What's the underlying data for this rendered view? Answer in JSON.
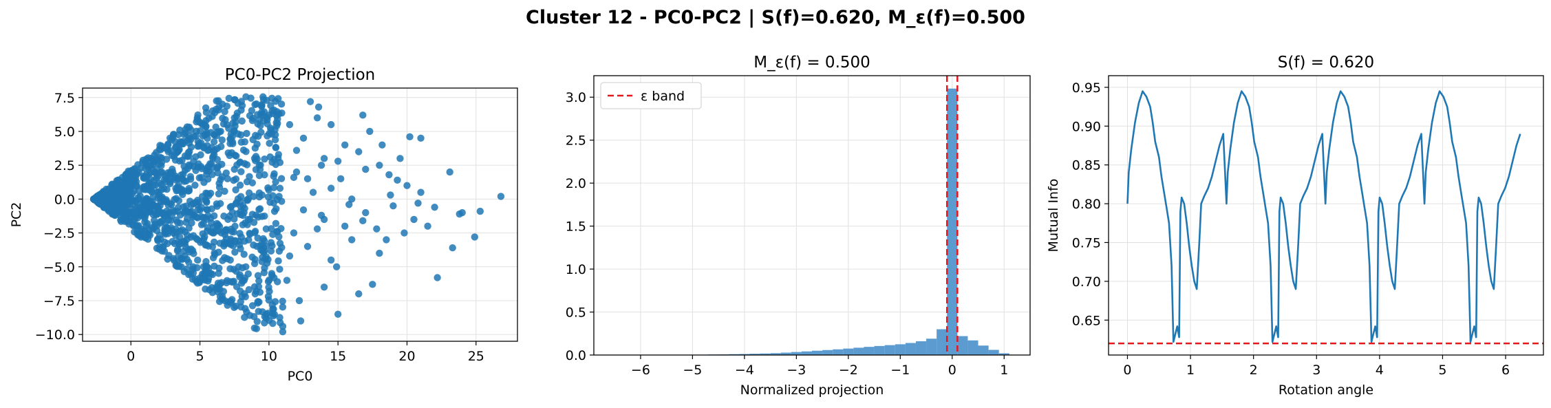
{
  "figure": {
    "suptitle": "Cluster 12 - PC0-PC2 | S(f)=0.620, M_ε(f)=0.500"
  },
  "colors": {
    "blue": "#1f77b4",
    "hist": "#5b9bd0",
    "red": "#e8151b",
    "grid": "#e0e0e0"
  },
  "chart_data": [
    {
      "type": "scatter",
      "title": "PC0-PC2 Projection",
      "xlabel": "PC0",
      "ylabel": "PC2",
      "xlim": [
        -3.5,
        28
      ],
      "ylim": [
        -10.5,
        8.2
      ],
      "xticks": [
        0,
        5,
        10,
        15,
        20,
        25
      ],
      "yticks": [
        -10.0,
        -7.5,
        -5.0,
        -2.5,
        0.0,
        2.5,
        5.0,
        7.5
      ],
      "grid": true,
      "point_cloud": {
        "description_of_shape": "dense wedge from origin",
        "apex": [
          -2.7,
          0.0
        ],
        "dense_until_x": 5,
        "slope": 0.83
      },
      "points": [
        [
          26.8,
          0.2
        ],
        [
          25.3,
          -0.9
        ],
        [
          24.0,
          -1.0
        ],
        [
          23.8,
          -1.1
        ],
        [
          24.9,
          -2.8
        ],
        [
          23.1,
          2.0
        ],
        [
          23.3,
          -3.6
        ],
        [
          22.0,
          -0.6
        ],
        [
          22.2,
          -5.8
        ],
        [
          21.0,
          4.5
        ],
        [
          21.0,
          0.5
        ],
        [
          20.5,
          -1.5
        ],
        [
          20.0,
          1.0
        ],
        [
          19.8,
          -2.5
        ],
        [
          20.2,
          4.6
        ],
        [
          19.5,
          3.0
        ],
        [
          19.0,
          -0.5
        ],
        [
          18.7,
          1.8
        ],
        [
          18.5,
          -3.0
        ],
        [
          18.0,
          -4.0
        ],
        [
          18.0,
          2.5
        ],
        [
          17.5,
          -6.3
        ],
        [
          17.0,
          -1.0
        ],
        [
          17.3,
          5.0
        ],
        [
          16.8,
          6.2
        ],
        [
          16.5,
          3.5
        ],
        [
          16.5,
          -7.0
        ],
        [
          16.0,
          0.0
        ],
        [
          15.5,
          4.0
        ],
        [
          15.0,
          -8.5
        ],
        [
          15.5,
          -2.0
        ],
        [
          15.2,
          1.5
        ],
        [
          14.9,
          -5.0
        ],
        [
          14.5,
          5.5
        ],
        [
          14.5,
          -4.5
        ],
        [
          14.0,
          -6.5
        ],
        [
          14.0,
          3.0
        ],
        [
          13.8,
          -1.2
        ],
        [
          13.5,
          6.0
        ],
        [
          13.0,
          7.2
        ],
        [
          13.6,
          6.8
        ],
        [
          13.2,
          0.5
        ],
        [
          12.8,
          -3.5
        ],
        [
          12.5,
          4.5
        ],
        [
          12.3,
          -9.0
        ],
        [
          12.2,
          -7.5
        ],
        [
          12.0,
          2.0
        ],
        [
          11.8,
          -2.5
        ],
        [
          11.5,
          5.5
        ],
        [
          11.3,
          -6.0
        ],
        [
          11.0,
          -9.4
        ],
        [
          11.0,
          -9.8
        ],
        [
          10.8,
          0.8
        ],
        [
          10.5,
          3.8
        ],
        [
          10.2,
          -5.5
        ],
        [
          10.0,
          6.2
        ],
        [
          9.8,
          -8.5
        ],
        [
          9.5,
          -3.8
        ],
        [
          9.3,
          2.5
        ],
        [
          9.0,
          -7.0
        ],
        [
          8.8,
          5.8
        ],
        [
          8.5,
          -1.5
        ],
        [
          8.2,
          -6.0
        ],
        [
          8.0,
          4.2
        ],
        [
          7.8,
          -5.0
        ],
        [
          7.5,
          6.0
        ],
        [
          7.2,
          -4.5
        ],
        [
          7.0,
          1.5
        ],
        [
          6.8,
          -7.5
        ],
        [
          6.5,
          5.0
        ],
        [
          6.2,
          -6.5
        ],
        [
          6.0,
          3.5
        ],
        [
          5.8,
          -5.5
        ],
        [
          5.5,
          4.8
        ],
        [
          11.5,
          -4.2
        ],
        [
          12.8,
          1.5
        ],
        [
          13.5,
          -2.2
        ],
        [
          10.5,
          -1.8
        ],
        [
          14.5,
          0.8
        ],
        [
          15.8,
          -0.4
        ],
        [
          17.0,
          2.2
        ],
        [
          16.0,
          -3.0
        ],
        [
          18.8,
          0.3
        ],
        [
          19.3,
          1.4
        ],
        [
          21.5,
          -2.0
        ],
        [
          20.8,
          -0.3
        ],
        [
          9.8,
          -2.2
        ],
        [
          8.8,
          1.2
        ],
        [
          10.8,
          2.7
        ],
        [
          11.8,
          1.6
        ],
        [
          12.5,
          -0.8
        ],
        [
          14.0,
          -1.5
        ],
        [
          13.8,
          2.5
        ],
        [
          15.0,
          2.8
        ],
        [
          9.5,
          0.3
        ],
        [
          8.0,
          -2.8
        ],
        [
          7.5,
          2.2
        ],
        [
          10.2,
          4.8
        ],
        [
          12.0,
          3.6
        ],
        [
          16.8,
          -1.6
        ],
        [
          18.2,
          4.0
        ],
        [
          17.8,
          -2.2
        ]
      ]
    },
    {
      "type": "bar",
      "title": "M_ε(f) = 0.500",
      "xlabel": "Normalized projection",
      "ylabel": "",
      "xlim": [
        -6.9,
        1.5
      ],
      "ylim": [
        0,
        3.25
      ],
      "xticks": [
        -6,
        -5,
        -4,
        -3,
        -2,
        -1,
        0,
        1
      ],
      "yticks": [
        0.0,
        0.5,
        1.0,
        1.5,
        2.0,
        2.5,
        3.0
      ],
      "grid": true,
      "bin_width": 0.2,
      "bins": [
        {
          "x": -6.6,
          "h": 0.0
        },
        {
          "x": -6.4,
          "h": 0.001
        },
        {
          "x": -6.2,
          "h": 0.001
        },
        {
          "x": -6.0,
          "h": 0.002
        },
        {
          "x": -5.8,
          "h": 0.002
        },
        {
          "x": -5.6,
          "h": 0.002
        },
        {
          "x": -5.4,
          "h": 0.003
        },
        {
          "x": -5.2,
          "h": 0.003
        },
        {
          "x": -5.0,
          "h": 0.004
        },
        {
          "x": -4.8,
          "h": 0.004
        },
        {
          "x": -4.6,
          "h": 0.006
        },
        {
          "x": -4.4,
          "h": 0.007
        },
        {
          "x": -4.2,
          "h": 0.01
        },
        {
          "x": -4.0,
          "h": 0.012
        },
        {
          "x": -3.8,
          "h": 0.015
        },
        {
          "x": -3.6,
          "h": 0.018
        },
        {
          "x": -3.4,
          "h": 0.022
        },
        {
          "x": -3.2,
          "h": 0.028
        },
        {
          "x": -3.0,
          "h": 0.035
        },
        {
          "x": -2.8,
          "h": 0.042
        },
        {
          "x": -2.6,
          "h": 0.05
        },
        {
          "x": -2.4,
          "h": 0.058
        },
        {
          "x": -2.2,
          "h": 0.066
        },
        {
          "x": -2.0,
          "h": 0.075
        },
        {
          "x": -1.8,
          "h": 0.085
        },
        {
          "x": -1.6,
          "h": 0.095
        },
        {
          "x": -1.4,
          "h": 0.105
        },
        {
          "x": -1.2,
          "h": 0.115
        },
        {
          "x": -1.0,
          "h": 0.125
        },
        {
          "x": -0.8,
          "h": 0.14
        },
        {
          "x": -0.6,
          "h": 0.16
        },
        {
          "x": -0.4,
          "h": 0.19
        },
        {
          "x": -0.2,
          "h": 0.3
        },
        {
          "x": 0.0,
          "h": 3.1
        },
        {
          "x": 0.2,
          "h": 0.22
        },
        {
          "x": 0.4,
          "h": 0.17
        },
        {
          "x": 0.6,
          "h": 0.11
        },
        {
          "x": 0.8,
          "h": 0.06
        },
        {
          "x": 1.0,
          "h": 0.02
        }
      ],
      "eps_band": [
        -0.1,
        0.1
      ],
      "legend": {
        "label": "ε band",
        "placement": "top-left"
      }
    },
    {
      "type": "line",
      "title": "S(f) = 0.620",
      "xlabel": "Rotation angle",
      "ylabel": "Mutual Info",
      "xlim": [
        -0.3,
        6.6
      ],
      "ylim": [
        0.605,
        0.965
      ],
      "xticks": [
        0,
        1,
        2,
        3,
        4,
        5,
        6
      ],
      "yticks": [
        0.65,
        0.7,
        0.75,
        0.8,
        0.85,
        0.9,
        0.95
      ],
      "grid": true,
      "threshold": 0.62,
      "period": 1.5708,
      "pattern": [
        [
          0.0,
          0.8
        ],
        [
          0.02,
          0.84
        ],
        [
          0.06,
          0.87
        ],
        [
          0.12,
          0.905
        ],
        [
          0.18,
          0.93
        ],
        [
          0.24,
          0.945
        ],
        [
          0.3,
          0.938
        ],
        [
          0.36,
          0.925
        ],
        [
          0.4,
          0.905
        ],
        [
          0.44,
          0.88
        ],
        [
          0.5,
          0.86
        ],
        [
          0.54,
          0.835
        ],
        [
          0.58,
          0.815
        ],
        [
          0.62,
          0.795
        ],
        [
          0.66,
          0.775
        ],
        [
          0.7,
          0.72
        ],
        [
          0.73,
          0.622
        ],
        [
          0.76,
          0.632
        ],
        [
          0.79,
          0.642
        ],
        [
          0.82,
          0.628
        ],
        [
          0.84,
          0.79
        ],
        [
          0.86,
          0.808
        ],
        [
          0.9,
          0.8
        ],
        [
          0.94,
          0.775
        ],
        [
          0.98,
          0.745
        ],
        [
          1.02,
          0.72
        ],
        [
          1.06,
          0.7
        ],
        [
          1.1,
          0.69
        ],
        [
          1.14,
          0.75
        ],
        [
          1.17,
          0.8
        ],
        [
          1.22,
          0.81
        ],
        [
          1.28,
          0.82
        ],
        [
          1.34,
          0.835
        ],
        [
          1.4,
          0.855
        ],
        [
          1.46,
          0.875
        ],
        [
          1.52,
          0.89
        ],
        [
          1.5708,
          0.8
        ]
      ]
    }
  ]
}
